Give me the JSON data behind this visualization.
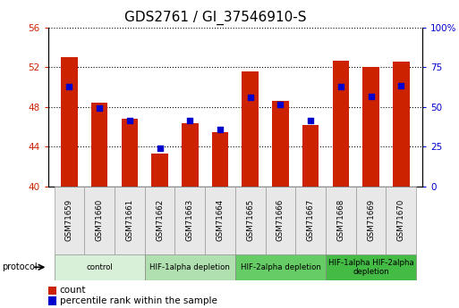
{
  "title": "GDS2761 / GI_37546910-S",
  "samples": [
    "GSM71659",
    "GSM71660",
    "GSM71661",
    "GSM71662",
    "GSM71663",
    "GSM71664",
    "GSM71665",
    "GSM71666",
    "GSM71667",
    "GSM71668",
    "GSM71669",
    "GSM71670"
  ],
  "red_values": [
    53.0,
    48.4,
    46.8,
    43.3,
    46.4,
    45.5,
    51.6,
    48.6,
    46.2,
    52.7,
    52.0,
    52.6
  ],
  "blue_percentiles": [
    63.0,
    49.5,
    41.5,
    24.0,
    41.5,
    36.0,
    56.0,
    51.5,
    41.5,
    63.0,
    56.5,
    63.5
  ],
  "ylim_left": [
    40,
    56
  ],
  "ylim_right": [
    0,
    100
  ],
  "yticks_left": [
    40,
    44,
    48,
    52,
    56
  ],
  "yticks_right": [
    0,
    25,
    50,
    75,
    100
  ],
  "ytick_labels_right": [
    "0",
    "25",
    "50",
    "75",
    "100%"
  ],
  "bar_color": "#cc2200",
  "dot_color": "#0000cc",
  "bg_color": "#ffffff",
  "axis_tick_color_left": "#cc2200",
  "axis_tick_color_right": "#0000cc",
  "grid_color": "#000000",
  "protocol_groups": [
    {
      "label": "control",
      "start": 0,
      "end": 2,
      "color": "#d8f0d8"
    },
    {
      "label": "HIF-1alpha depletion",
      "start": 3,
      "end": 5,
      "color": "#b0e0b0"
    },
    {
      "label": "HIF-2alpha depletion",
      "start": 6,
      "end": 8,
      "color": "#66cc66"
    },
    {
      "label": "HIF-1alpha HIF-2alpha\ndepletion",
      "start": 9,
      "end": 11,
      "color": "#44bb44"
    }
  ],
  "bar_width": 0.55,
  "title_fontsize": 11,
  "legend_fontsize": 7.5,
  "tick_fontsize": 7.5,
  "sample_fontsize": 6.2
}
